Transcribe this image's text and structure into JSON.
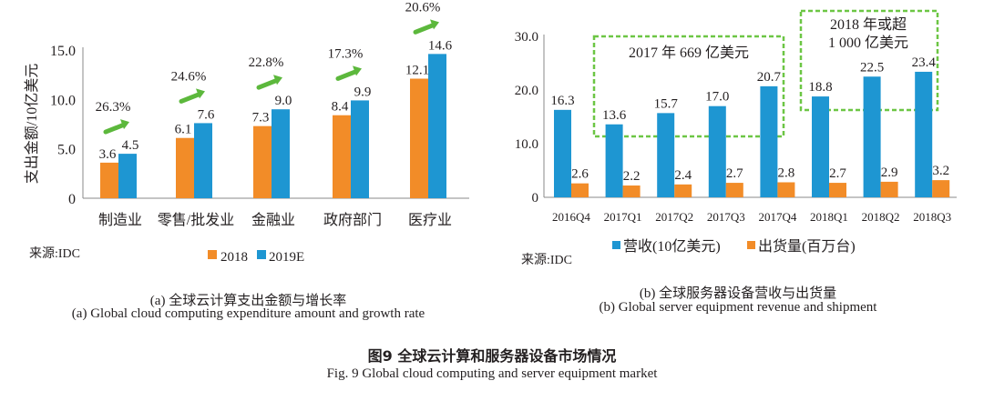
{
  "chart_data": [
    {
      "type": "bar",
      "id": "a",
      "ylabel": "支出金额/10亿美元",
      "ylim": [
        0,
        15
      ],
      "yticks": [
        "0",
        "5.0",
        "10.0",
        "15.0"
      ],
      "ytick_values": [
        0,
        5,
        10,
        15
      ],
      "categories": [
        "制造业",
        "零售/批发业",
        "金融业",
        "政府部门",
        "医疗业"
      ],
      "series": [
        {
          "name": "2018",
          "color": "#f28c28",
          "values": [
            3.6,
            6.1,
            7.3,
            8.4,
            12.1
          ],
          "labels": [
            "3.6",
            "6.1",
            "7.3",
            "8.4",
            "12.1"
          ]
        },
        {
          "name": "2019E",
          "color": "#1e96d2",
          "values": [
            4.5,
            7.6,
            9.0,
            9.9,
            14.6
          ],
          "labels": [
            "4.5",
            "7.6",
            "9.0",
            "9.9",
            "14.6"
          ]
        }
      ],
      "growth_rates": [
        "26.3%",
        "24.6%",
        "22.8%",
        "17.3%",
        "20.6%"
      ],
      "growth_arrow_color": "#5cb83c",
      "legend": [
        "2018",
        "2019E"
      ],
      "legend_position": "bottom",
      "source": "来源:IDC",
      "caption_cn": "(a) 全球云计算支出金额与增长率",
      "caption_en": "(a) Global cloud computing expenditure amount and growth rate"
    },
    {
      "type": "bar",
      "id": "b",
      "ylim": [
        0,
        30
      ],
      "yticks": [
        "0",
        "10.0",
        "20.0",
        "30.0"
      ],
      "ytick_values": [
        0,
        10,
        20,
        30
      ],
      "categories": [
        "2016Q4",
        "2017Q1",
        "2017Q2",
        "2017Q3",
        "2017Q4",
        "2018Q1",
        "2018Q2",
        "2018Q3"
      ],
      "series": [
        {
          "name": "营收(10亿美元)",
          "color": "#1e96d2",
          "values": [
            16.3,
            13.6,
            15.7,
            17.0,
            20.7,
            18.8,
            22.5,
            23.4
          ],
          "labels": [
            "16.3",
            "13.6",
            "15.7",
            "17.0",
            "20.7",
            "18.8",
            "22.5",
            "23.4"
          ]
        },
        {
          "name": "出货量(百万台)",
          "color": "#f28c28",
          "values": [
            2.6,
            2.2,
            2.4,
            2.7,
            2.8,
            2.7,
            2.9,
            3.2
          ],
          "labels": [
            "2.6",
            "2.2",
            "2.4",
            "2.7",
            "2.8",
            "2.7",
            "2.9",
            "3.2"
          ]
        }
      ],
      "annotations": [
        {
          "text": "2017 年 669 亿美元",
          "span": [
            "2017Q1",
            "2017Q4"
          ]
        },
        {
          "text_lines": [
            "2018 年或超",
            "1 000 亿美元"
          ],
          "span": [
            "2018Q1",
            "2018Q3"
          ]
        }
      ],
      "annotation_color": "#6cc644",
      "legend": [
        "营收(10亿美元)",
        "出货量(百万台)"
      ],
      "legend_position": "bottom",
      "source": "来源:IDC",
      "caption_cn": "(b) 全球服务器设备营收与出货量",
      "caption_en": "(b) Global server equipment revenue and shipment"
    }
  ],
  "figure": {
    "title_cn": "图9 全球云计算和服务器设备市场情况",
    "title_en": "Fig. 9 Global cloud computing and server equipment market"
  }
}
